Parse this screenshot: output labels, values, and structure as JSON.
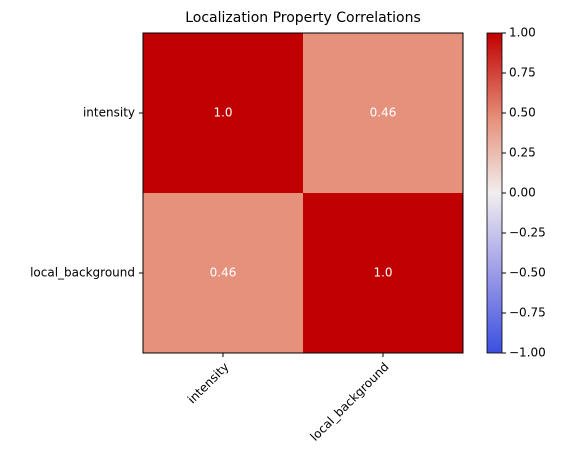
{
  "chart_data": {
    "type": "heatmap",
    "title": "Localization Property Correlations",
    "rows": [
      "intensity",
      "local_background"
    ],
    "columns": [
      "intensity",
      "local_background"
    ],
    "z": [
      [
        1.0,
        0.46
      ],
      [
        0.46,
        1.0
      ]
    ],
    "value_labels": [
      [
        "1.0",
        "0.46"
      ],
      [
        "0.46",
        "1.0"
      ]
    ],
    "zlim": [
      -1,
      1
    ],
    "colorscale": [
      [
        -1,
        "#3b4fe0"
      ],
      [
        -0.5,
        "#9c9be8"
      ],
      [
        0,
        "#f1eeee"
      ],
      [
        0.46,
        "#e6917b"
      ],
      [
        1,
        "#c00000"
      ]
    ],
    "zticks": [
      {
        "value": 1,
        "label": "1.00"
      },
      {
        "value": 0.75,
        "label": "0.75"
      },
      {
        "value": 0.5,
        "label": "0.50"
      },
      {
        "value": 0.25,
        "label": "0.25"
      },
      {
        "value": 0,
        "label": "0.00"
      },
      {
        "value": -0.25,
        "label": "−0.25"
      },
      {
        "value": -0.5,
        "label": "−0.50"
      },
      {
        "value": -0.75,
        "label": "−0.75"
      },
      {
        "value": -1,
        "label": "−1.00"
      }
    ]
  }
}
